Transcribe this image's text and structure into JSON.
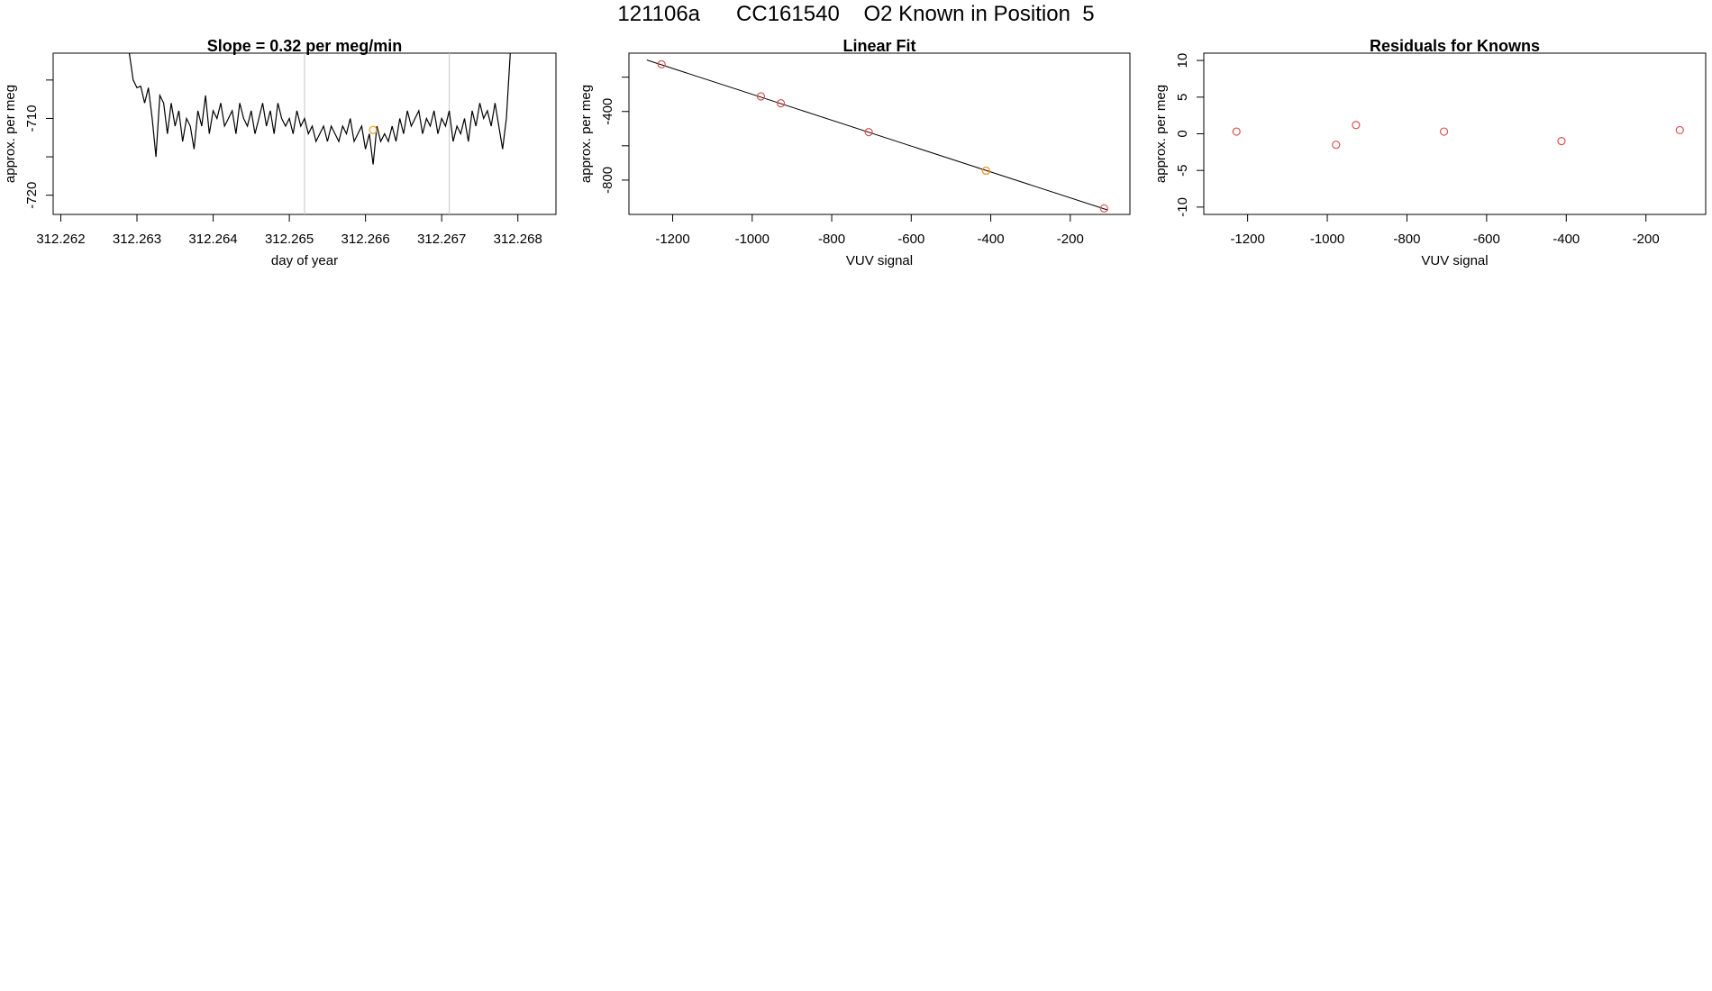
{
  "figure_title": "121106a      CC161540    O2 Known in Position  5",
  "colors": {
    "axis": "#000000",
    "line": "#000000",
    "marker_red": "#d9534f",
    "marker_orange": "#f0a020",
    "vline": "#c8c8c8"
  },
  "chart_data": [
    {
      "type": "line",
      "title": "Slope =  0.32  per meg/min",
      "xlabel": "day of year",
      "ylabel": "approx. per meg",
      "xlim": [
        312.2619,
        312.2685
      ],
      "ylim": [
        -722.5,
        -701.5
      ],
      "xticks": [
        312.262,
        312.263,
        312.264,
        312.265,
        312.266,
        312.267,
        312.268
      ],
      "xtick_labels": [
        "312.262",
        "312.263",
        "312.264",
        "312.265",
        "312.266",
        "312.267",
        "312.268"
      ],
      "yticks": [
        -720,
        -715,
        -710,
        -705
      ],
      "ytick_labels": [
        "-720",
        "",
        "-710",
        ""
      ],
      "vlines": [
        312.2652,
        312.2671
      ],
      "x": [
        312.2629,
        312.26295,
        312.263,
        312.26305,
        312.2631,
        312.26315,
        312.2632,
        312.26325,
        312.2633,
        312.26335,
        312.2634,
        312.26345,
        312.2635,
        312.26355,
        312.2636,
        312.26365,
        312.2637,
        312.26375,
        312.2638,
        312.26385,
        312.2639,
        312.26395,
        312.264,
        312.26405,
        312.2641,
        312.26415,
        312.2642,
        312.26425,
        312.2643,
        312.26435,
        312.2644,
        312.26445,
        312.2645,
        312.26455,
        312.2646,
        312.26465,
        312.2647,
        312.26475,
        312.2648,
        312.26485,
        312.2649,
        312.26495,
        312.265,
        312.26505,
        312.2651,
        312.26515,
        312.2652,
        312.26525,
        312.2653,
        312.26535,
        312.2654,
        312.26545,
        312.2655,
        312.26555,
        312.2656,
        312.26565,
        312.2657,
        312.26575,
        312.2658,
        312.26585,
        312.2659,
        312.26595,
        312.266,
        312.26605,
        312.2661,
        312.26615,
        312.2662,
        312.26625,
        312.2663,
        312.26635,
        312.2664,
        312.26645,
        312.2665,
        312.26655,
        312.2666,
        312.26665,
        312.2667,
        312.26675,
        312.2668,
        312.26685,
        312.2669,
        312.26695,
        312.267,
        312.26705,
        312.2671,
        312.26715,
        312.2672,
        312.26725,
        312.2673,
        312.26735,
        312.2674,
        312.26745,
        312.2675,
        312.26755,
        312.2676,
        312.26765,
        312.2677,
        312.26775,
        312.2678,
        312.26785,
        312.2679
      ],
      "y": [
        -701.5,
        -705,
        -706,
        -705.8,
        -708,
        -706,
        -710,
        -715,
        -707,
        -708,
        -712,
        -708,
        -711,
        -709,
        -713,
        -710,
        -711,
        -714,
        -709,
        -711,
        -707,
        -712,
        -709,
        -710,
        -708,
        -711,
        -710,
        -709,
        -712,
        -708,
        -710,
        -711,
        -709,
        -712,
        -710,
        -708,
        -711,
        -709,
        -712,
        -708,
        -710,
        -711,
        -710,
        -712,
        -709,
        -711,
        -710,
        -712,
        -711,
        -713,
        -712,
        -711,
        -713,
        -711,
        -712,
        -713,
        -711,
        -712,
        -710,
        -713,
        -712,
        -711,
        -714,
        -712,
        -716,
        -711,
        -713,
        -712,
        -713,
        -711,
        -713,
        -710,
        -712,
        -709,
        -711,
        -710,
        -709,
        -712,
        -710,
        -711,
        -709,
        -712,
        -710,
        -711,
        -709,
        -713,
        -711,
        -712,
        -710,
        -713,
        -709,
        -711,
        -708,
        -710,
        -709,
        -711,
        -708,
        -711,
        -714,
        -710,
        -701.5
      ],
      "highlight_points": [
        {
          "x": 312.2661,
          "y": -711.5,
          "color": "orange"
        }
      ]
    },
    {
      "type": "scatter",
      "title": "Linear Fit",
      "xlabel": "VUV signal",
      "ylabel": "approx. per meg",
      "xlim": [
        -1310,
        -50
      ],
      "ylim": [
        -1000,
        -60
      ],
      "xticks": [
        -1200,
        -1000,
        -800,
        -600,
        -400,
        -200
      ],
      "xtick_labels": [
        "-1200",
        "-1000",
        "-800",
        "-600",
        "-400",
        "-200"
      ],
      "yticks": [
        -800,
        -600,
        -400,
        -200
      ],
      "ytick_labels": [
        "-800",
        "",
        "-400",
        ""
      ],
      "series": [
        {
          "x": [
            -1228,
            -978,
            -928,
            -707,
            -412,
            -115
          ],
          "y": [
            -125,
            -312,
            -352,
            -520,
            -745,
            -965
          ],
          "color": "red"
        },
        {
          "x": [
            -412
          ],
          "y": [
            -745
          ],
          "color": "orange"
        }
      ],
      "fit_line": {
        "x": [
          -1265,
          -105
        ],
        "y": [
          -100,
          -975
        ]
      }
    },
    {
      "type": "scatter",
      "title": "Residuals for Knowns",
      "xlabel": "VUV signal",
      "ylabel": "approx. per meg",
      "xlim": [
        -1310,
        -50
      ],
      "ylim": [
        -11,
        11
      ],
      "xticks": [
        -1200,
        -1000,
        -800,
        -600,
        -400,
        -200
      ],
      "xtick_labels": [
        "-1200",
        "-1000",
        "-800",
        "-600",
        "-400",
        "-200"
      ],
      "yticks": [
        -10,
        -5,
        0,
        5,
        10
      ],
      "ytick_labels": [
        "-10",
        "-5",
        "0",
        "5",
        "10"
      ],
      "series": [
        {
          "x": [
            -1228,
            -978,
            -928,
            -707,
            -412,
            -115
          ],
          "y": [
            0.3,
            -1.5,
            1.2,
            0.3,
            -1.0,
            0.5
          ],
          "color": "red"
        }
      ]
    }
  ]
}
